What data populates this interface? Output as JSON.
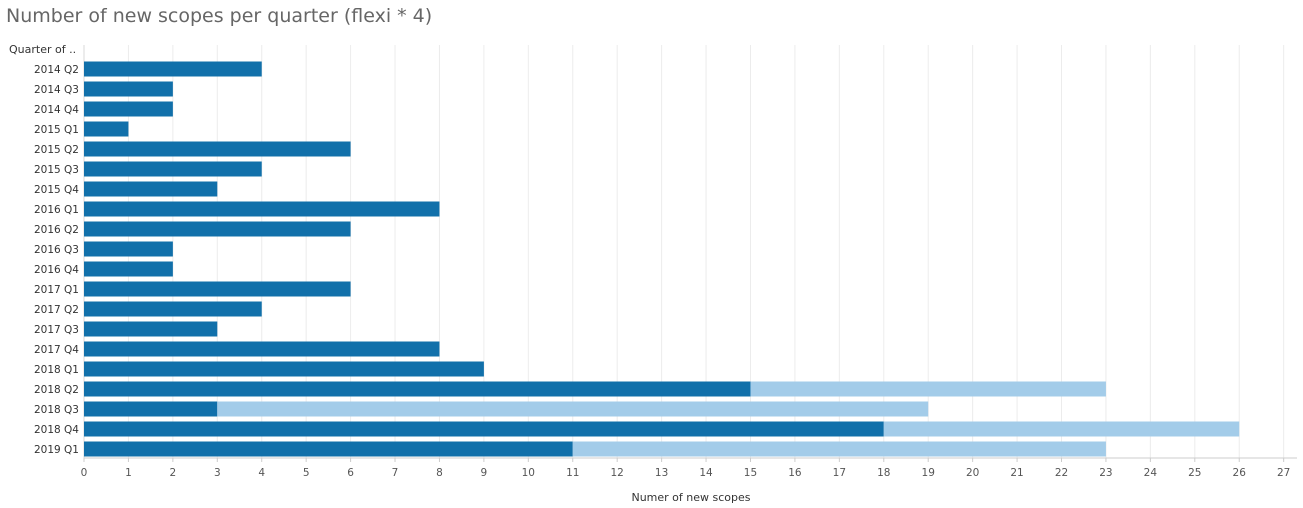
{
  "chart_data": {
    "type": "bar",
    "orientation": "horizontal",
    "stacked": true,
    "title": "Number of new scopes per quarter (flexi * 4)",
    "ylabel": "Quarter of ..",
    "xlabel": "Numer of new scopes",
    "categories": [
      "2014 Q2",
      "2014 Q3",
      "2014 Q4",
      "2015 Q1",
      "2015 Q2",
      "2015 Q3",
      "2015 Q4",
      "2016 Q1",
      "2016 Q2",
      "2016 Q3",
      "2016 Q4",
      "2017 Q1",
      "2017 Q2",
      "2017 Q3",
      "2017 Q4",
      "2018 Q1",
      "2018 Q2",
      "2018 Q3",
      "2018 Q4",
      "2019 Q1"
    ],
    "series": [
      {
        "color": "#1170aa",
        "values": [
          4,
          2,
          2,
          1,
          6,
          4,
          3,
          8,
          6,
          2,
          2,
          6,
          4,
          3,
          8,
          9,
          15,
          3,
          18,
          11
        ]
      },
      {
        "color": "#a3cce9",
        "values": [
          0,
          0,
          0,
          0,
          0,
          0,
          0,
          0,
          0,
          0,
          0,
          0,
          0,
          0,
          0,
          0,
          8,
          16,
          8,
          12
        ]
      }
    ],
    "xlim": [
      0,
      27.3
    ],
    "xticks": [
      0,
      1,
      2,
      3,
      4,
      5,
      6,
      7,
      8,
      9,
      10,
      11,
      12,
      13,
      14,
      15,
      16,
      17,
      18,
      19,
      20,
      21,
      22,
      23,
      24,
      25,
      26,
      27
    ],
    "grid": true,
    "legend": "none"
  }
}
